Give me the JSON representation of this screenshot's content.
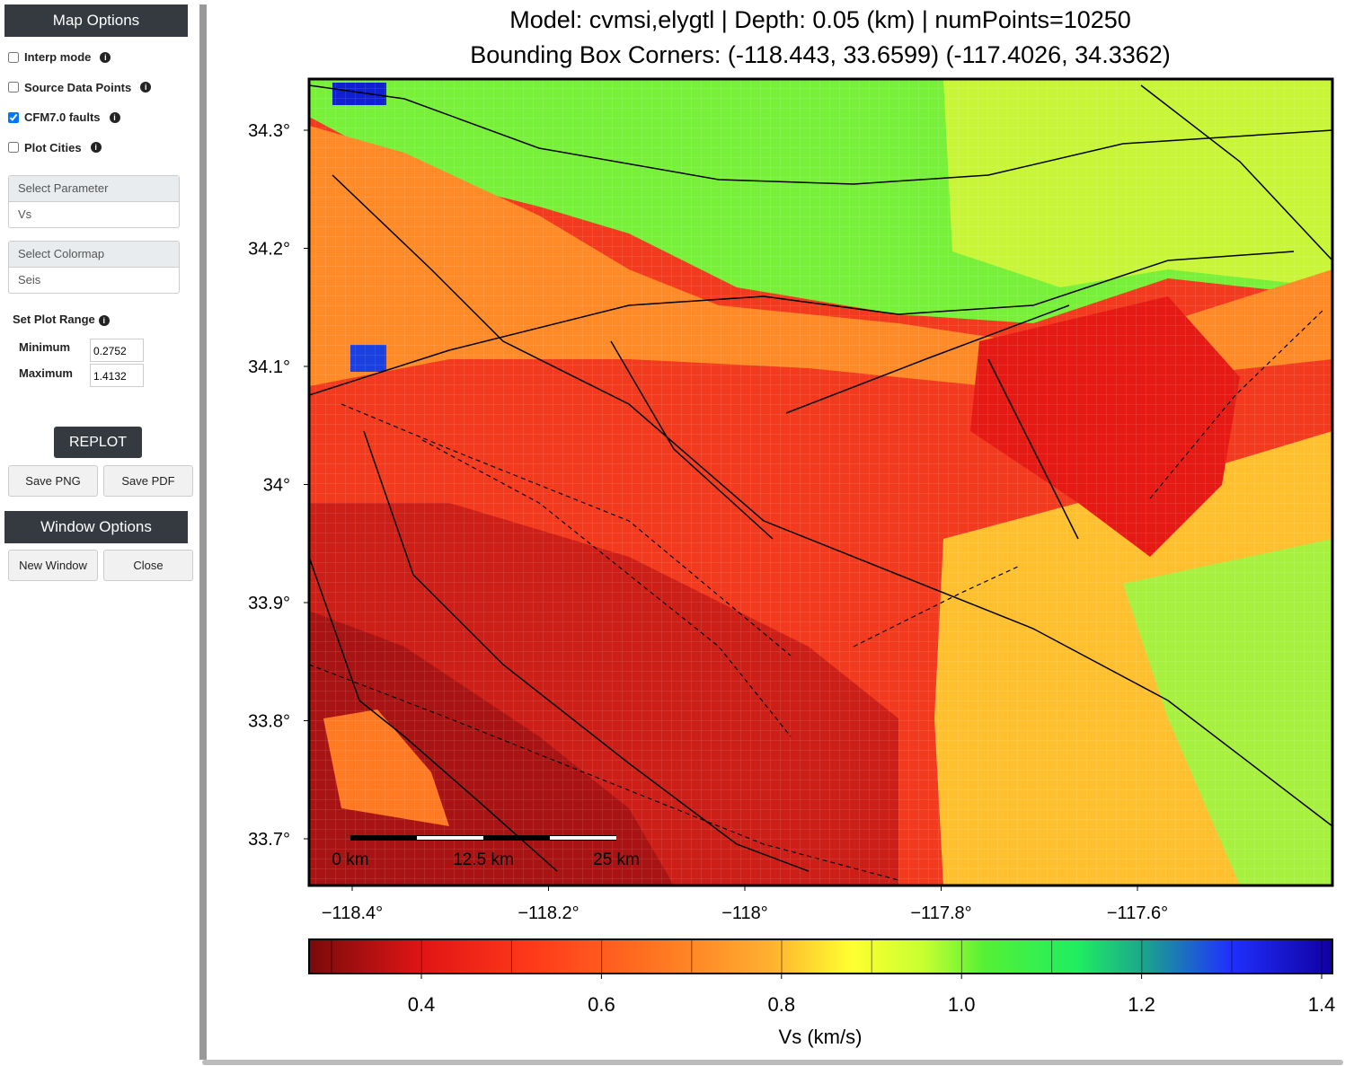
{
  "sidebar": {
    "map_options": {
      "title": "Map Options",
      "checkboxes": [
        {
          "label": "Interp mode",
          "checked": false
        },
        {
          "label": "Source Data Points",
          "checked": false
        },
        {
          "label": "CFM7.0 faults",
          "checked": true
        },
        {
          "label": "Plot Cities",
          "checked": false
        }
      ]
    },
    "parameter": {
      "label": "Select Parameter",
      "value": "Vs"
    },
    "colormap": {
      "label": "Select Colormap",
      "value": "Seis"
    },
    "plot_range": {
      "title": "Set Plot Range",
      "minimum_label": "Minimum",
      "minimum": "0.2752",
      "maximum_label": "Maximum",
      "maximum": "1.4132"
    },
    "buttons": {
      "replot": "REPLOT",
      "save_png": "Save PNG",
      "save_pdf": "Save PDF"
    },
    "window_options": {
      "title": "Window Options",
      "new_window": "New Window",
      "close": "Close"
    }
  },
  "plot": {
    "title_lines": [
      "Model: cvmsi,elygtl | Depth: 0.05 (km) | numPoints=10250",
      "Bounding Box Corners: (-118.443, 33.6599) (-117.4026, 34.3362)"
    ],
    "yticks": [
      "34.3°",
      "34.2°",
      "34.1°",
      "34°",
      "33.9°",
      "33.8°",
      "33.7°"
    ],
    "xticks": [
      "−118.4°",
      "−118.2°",
      "−118°",
      "−117.8°",
      "−117.6°"
    ],
    "scale_bar": [
      "0 km",
      "12.5 km",
      "25 km"
    ],
    "colorbar": {
      "ticks": [
        "0.4",
        "0.6",
        "0.8",
        "1.0",
        "1.2",
        "1.4"
      ],
      "label": "Vs (km/s)"
    }
  }
}
